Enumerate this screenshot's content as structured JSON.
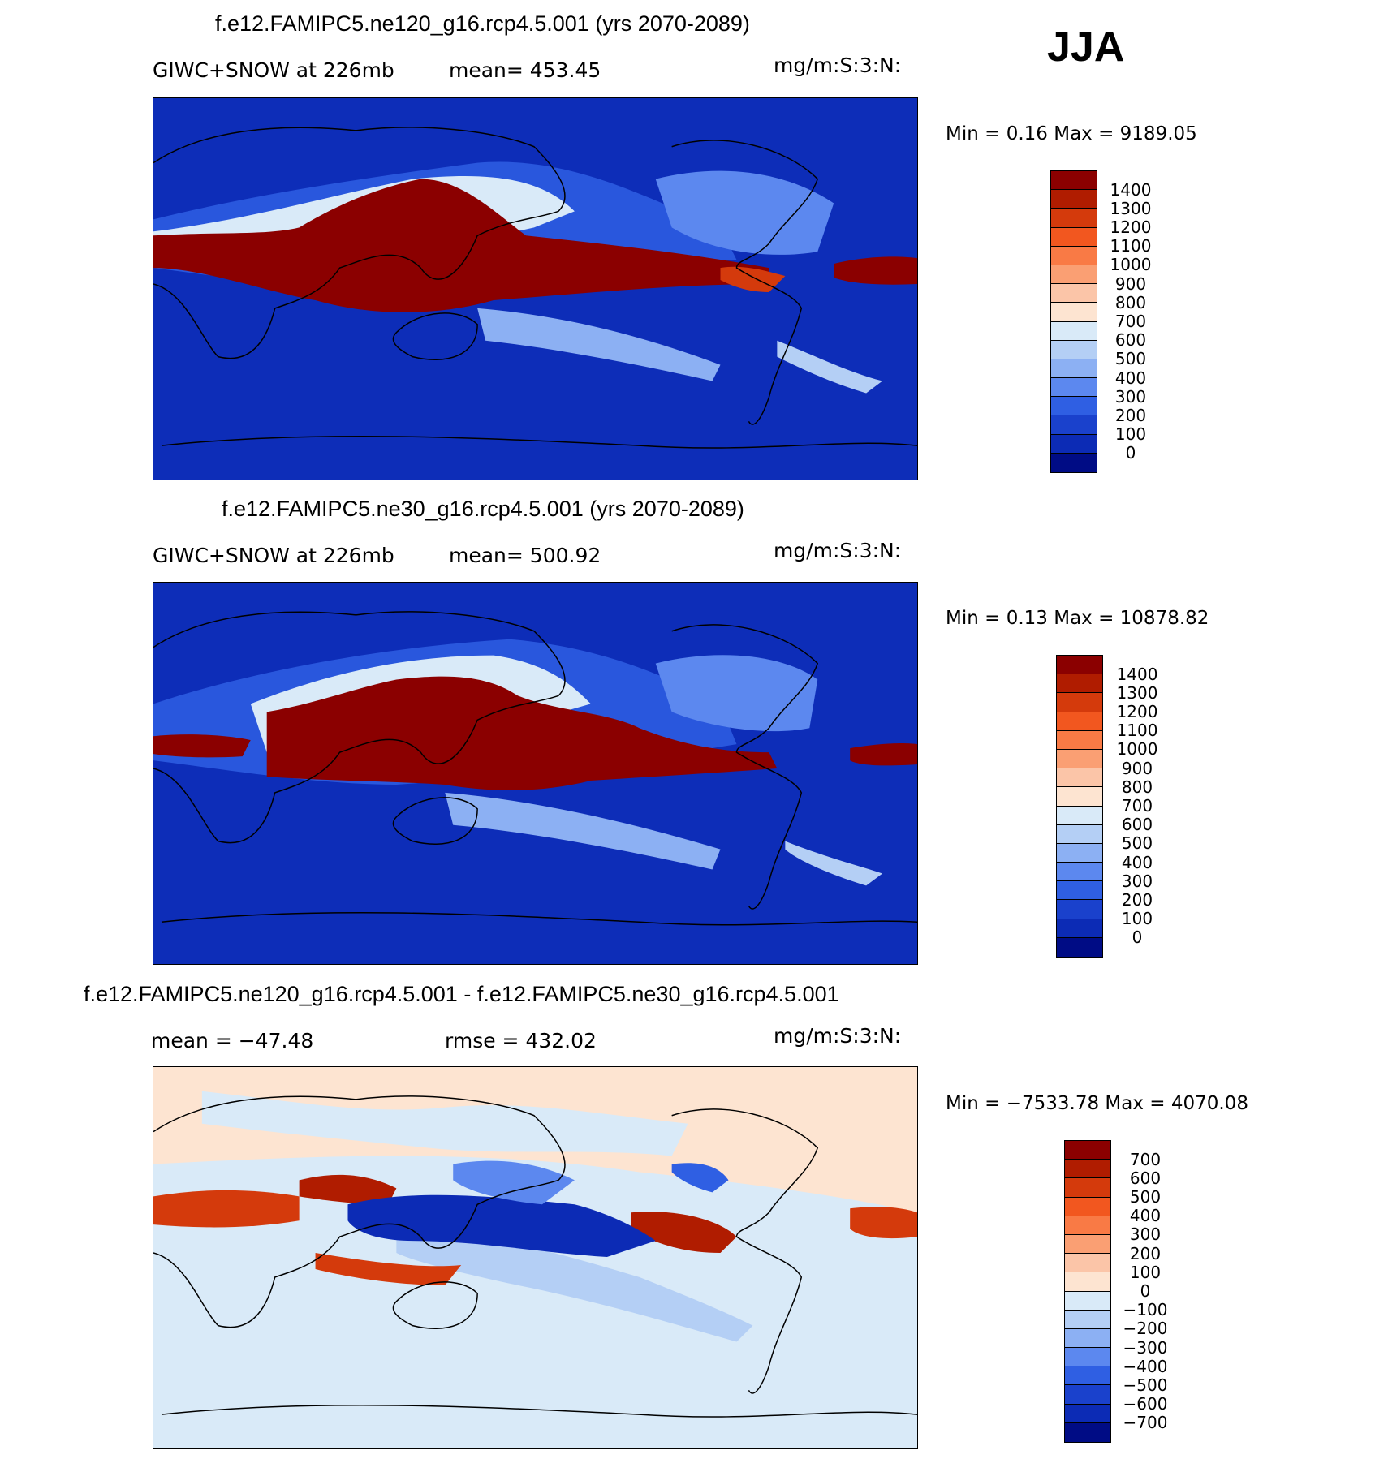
{
  "season": "JJA",
  "panels": [
    {
      "title": "f.e12.FAMIPC5.ne120_g16.rcp4.5.001 (yrs 2070-2089)",
      "left_label": "GIWC+SNOW at 226mb",
      "center_label": "mean= 453.45",
      "units": "mg/m:S:3:N:",
      "minmax": "Min =    0.16  Max  =  9189.05",
      "cbar_labels": [
        "1400",
        "1300",
        "1200",
        "1100",
        "1000",
        "900",
        "800",
        "700",
        "600",
        "500",
        "400",
        "300",
        "200",
        "100",
        "0"
      ],
      "cbar_colors": [
        "#8b0000",
        "#b01c00",
        "#d43a0c",
        "#f2571f",
        "#f97a45",
        "#fa9f73",
        "#fbc5a8",
        "#fde4d1",
        "#d9eaf8",
        "#b4cff5",
        "#8cb0f3",
        "#5c88ef",
        "#2f5fe3",
        "#1a41cc",
        "#0c2bb5",
        "#000c85"
      ],
      "background": "#0d2db8"
    },
    {
      "title": "f.e12.FAMIPC5.ne30_g16.rcp4.5.001 (yrs 2070-2089)",
      "left_label": "GIWC+SNOW at 226mb",
      "center_label": "mean= 500.92",
      "units": "mg/m:S:3:N:",
      "minmax": "Min =    0.13  Max  =  10878.82",
      "cbar_labels": [
        "1400",
        "1300",
        "1200",
        "1100",
        "1000",
        "900",
        "800",
        "700",
        "600",
        "500",
        "400",
        "300",
        "200",
        "100",
        "0"
      ],
      "cbar_colors": [
        "#8b0000",
        "#b01c00",
        "#d43a0c",
        "#f2571f",
        "#f97a45",
        "#fa9f73",
        "#fbc5a8",
        "#fde4d1",
        "#d9eaf8",
        "#b4cff5",
        "#8cb0f3",
        "#5c88ef",
        "#2f5fe3",
        "#1a41cc",
        "#0c2bb5",
        "#000c85"
      ],
      "background": "#0d2db8"
    },
    {
      "title": "f.e12.FAMIPC5.ne120_g16.rcp4.5.001 - f.e12.FAMIPC5.ne30_g16.rcp4.5.001",
      "left_label": "mean  =  −47.48",
      "center_label": "rmse  =  432.02",
      "units": "mg/m:S:3:N:",
      "minmax": "Min  =  −7533.78  Max  =  4070.08",
      "cbar_labels": [
        "700",
        "600",
        "500",
        "400",
        "300",
        "200",
        "100",
        "0",
        "−100",
        "−200",
        "−300",
        "−400",
        "−500",
        "−600",
        "−700"
      ],
      "cbar_colors": [
        "#8b0000",
        "#b01c00",
        "#d43a0c",
        "#f2571f",
        "#f97a45",
        "#fa9f73",
        "#fbc5a8",
        "#fde4d1",
        "#d9eaf8",
        "#b4cff5",
        "#8cb0f3",
        "#5c88ef",
        "#2f5fe3",
        "#1a41cc",
        "#0c2bb5",
        "#000c85"
      ],
      "background": "#fde4d1"
    }
  ]
}
